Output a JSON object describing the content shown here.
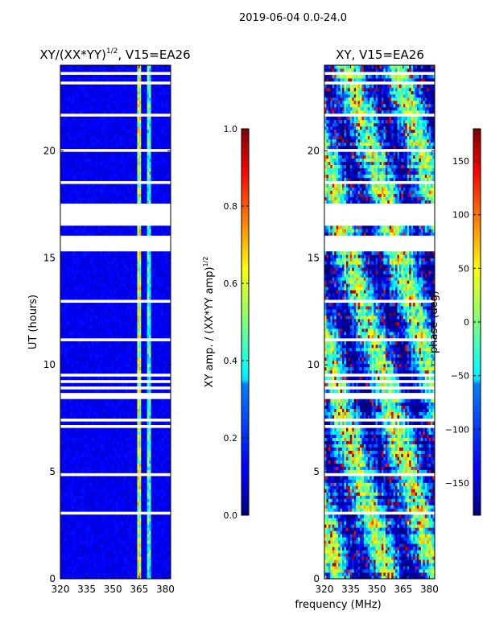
{
  "suptitle": "2019-06-04 0.0-24.0",
  "shared_xlabel": "frequency (MHz)",
  "chart_data": [
    {
      "type": "heatmap",
      "title_main": "XY/(XX*YY)",
      "title_sup": "1/2",
      "title_tail": ", V15=EA26",
      "ylabel": "UT (hours)",
      "xlim": [
        320,
        383
      ],
      "ylim": [
        0,
        24
      ],
      "xticks": [
        320,
        335,
        350,
        365,
        380
      ],
      "yticks": [
        0,
        5,
        10,
        15,
        20
      ],
      "colorbar": {
        "label_main": "XY amp. / (XX*YY amp)",
        "label_sup": "1/2",
        "range": [
          0.0,
          1.0
        ],
        "ticks": [
          0.0,
          0.2,
          0.4,
          0.6,
          0.8,
          1.0
        ],
        "tick_labels": [
          "0.0",
          "0.2",
          "0.4",
          "0.6",
          "0.8",
          "1.0"
        ],
        "colormap": "jet"
      },
      "bright_bands_mhz": [
        [
          363.5,
          366.0
        ],
        [
          369.0,
          372.0
        ]
      ],
      "gap_bands_hours": [
        [
          16.5,
          17.5
        ],
        [
          15.3,
          16.1
        ],
        [
          8.4,
          8.7
        ]
      ]
    },
    {
      "type": "heatmap",
      "title_main": "XY, V15=EA26",
      "ylabel": "",
      "xlim": [
        320,
        383
      ],
      "ylim": [
        0,
        24
      ],
      "xticks": [
        320,
        335,
        350,
        365,
        380
      ],
      "yticks": [
        0,
        5,
        10,
        15,
        20
      ],
      "colorbar": {
        "label_main": "phase (deg)",
        "range": [
          -180,
          180
        ],
        "ticks": [
          -150,
          -100,
          -50,
          0,
          50,
          100,
          150
        ],
        "tick_labels": [
          "−150",
          "−100",
          "−50",
          "0",
          "50",
          "100",
          "150"
        ],
        "colormap": "jet"
      },
      "gap_bands_hours": [
        [
          16.5,
          17.5
        ],
        [
          15.3,
          16.1
        ],
        [
          8.4,
          8.7
        ]
      ]
    }
  ]
}
